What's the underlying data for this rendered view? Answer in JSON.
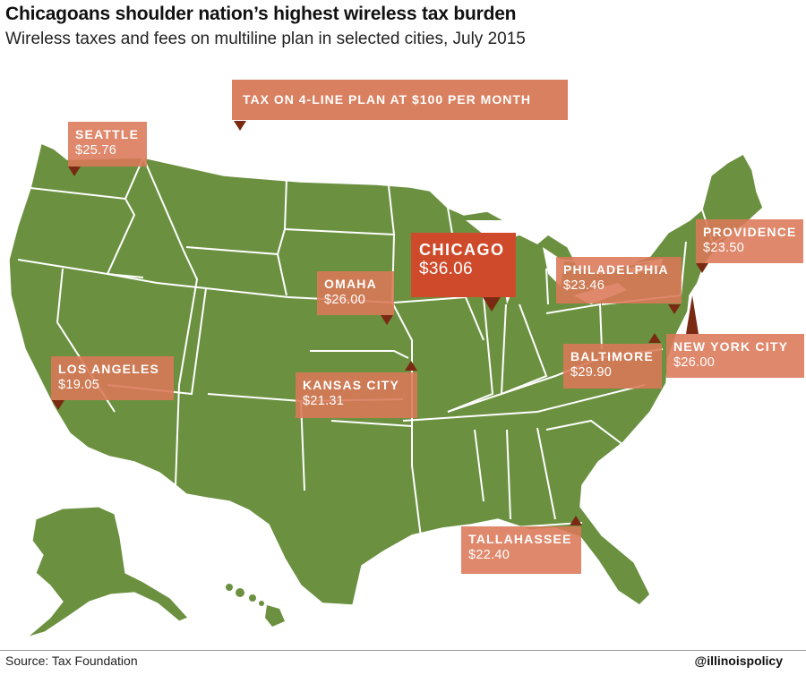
{
  "title": "Chicagoans shoulder nation’s highest wireless tax burden",
  "subtitle": "Wireless taxes and fees on multiline plan in selected cities, July 2015",
  "legend": "TAX ON 4-LINE PLAN AT $100 PER MONTH",
  "colors": {
    "land": "#6b9140",
    "label": "#db7858",
    "highlight": "#cf4a2a",
    "pointer": "#7a2a12"
  },
  "cities": [
    {
      "id": "seattle",
      "name": "SEATTLE",
      "value": "$25.76"
    },
    {
      "id": "providence",
      "name": "PROVIDENCE",
      "value": "$23.50"
    },
    {
      "id": "chicago",
      "name": "CHICAGO",
      "value": "$36.06"
    },
    {
      "id": "omaha",
      "name": "OMAHA",
      "value": "$26.00"
    },
    {
      "id": "philadelphia",
      "name": "PHILADELPHIA",
      "value": "$23.46"
    },
    {
      "id": "new-york-city",
      "name": "NEW YORK CITY",
      "value": "$26.00"
    },
    {
      "id": "baltimore",
      "name": "BALTIMORE",
      "value": "$29.90"
    },
    {
      "id": "los-angeles",
      "name": "LOS ANGELES",
      "value": "$19.05"
    },
    {
      "id": "kansas-city",
      "name": "KANSAS CITY",
      "value": "$21.31"
    },
    {
      "id": "tallahassee",
      "name": "TALLAHASSEE",
      "value": "$22.40"
    }
  ],
  "source": "Source: Tax Foundation",
  "handle": "@illinoispolicy"
}
